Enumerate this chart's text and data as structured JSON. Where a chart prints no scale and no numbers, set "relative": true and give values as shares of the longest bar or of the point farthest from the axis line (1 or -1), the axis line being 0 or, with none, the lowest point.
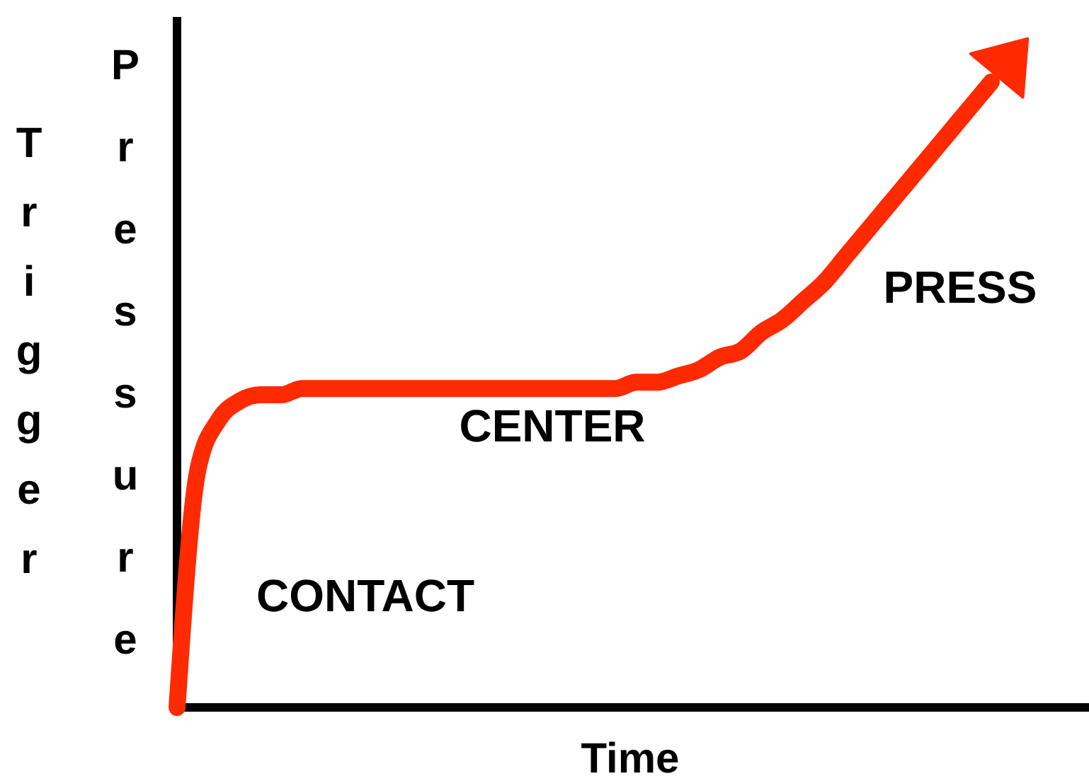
{
  "chart_data": {
    "type": "line",
    "relative": true,
    "xlabel": "Time",
    "ylabel": "Trigger Pressure",
    "categories": [
      null,
      null,
      null,
      null,
      null,
      null,
      null,
      null,
      null,
      null,
      null,
      null,
      null,
      null,
      null,
      null,
      null,
      null,
      null,
      null,
      null,
      null,
      null,
      null,
      null,
      null,
      null,
      null,
      null,
      null,
      null,
      null,
      null,
      null,
      null,
      null,
      null,
      null,
      null,
      null
    ],
    "series": [
      {
        "color": "#ff2a00",
        "values": [
          0,
          0.38,
          0.46,
          0.49,
          0.5,
          0.5,
          0.51,
          0.51,
          0.51,
          0.51,
          0.51,
          0.51,
          0.51,
          0.51,
          0.51,
          0.51,
          0.51,
          0.51,
          0.51,
          0.51,
          0.51,
          0.51,
          0.52,
          0.52,
          0.53,
          0.54,
          0.56,
          0.57,
          0.6,
          0.62,
          0.65,
          0.68,
          0.72,
          0.76,
          0.8,
          0.84,
          0.88,
          0.92,
          0.96,
          1
        ]
      }
    ],
    "annotations": [
      "CONTACT",
      "CENTER",
      "PRESS"
    ]
  }
}
